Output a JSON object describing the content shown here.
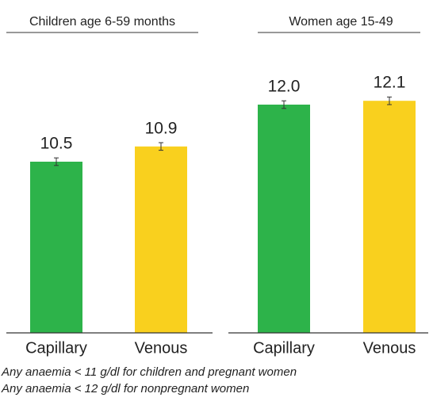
{
  "chart_data": [
    {
      "type": "bar",
      "title": "Children age 6-59 months",
      "categories": [
        "Capillary",
        "Venous"
      ],
      "values": [
        10.5,
        10.9
      ],
      "value_labels": [
        "10.5",
        "10.9"
      ],
      "errors": [
        0.1,
        0.1
      ],
      "colors": [
        "#2db34a",
        "#f9d01e"
      ],
      "ylim": [
        6,
        13
      ]
    },
    {
      "type": "bar",
      "title": "Women age 15-49",
      "categories": [
        "Capillary",
        "Venous"
      ],
      "values": [
        12.0,
        12.1
      ],
      "value_labels": [
        "12.0",
        "12.1"
      ],
      "errors": [
        0.1,
        0.1
      ],
      "colors": [
        "#2db34a",
        "#f9d01e"
      ],
      "ylim": [
        6,
        13
      ]
    }
  ],
  "notes": [
    "Any anaemia < 11 g/dl for children and pregnant women",
    "Any anaemia < 12 g/dl for nonpregnant women"
  ]
}
